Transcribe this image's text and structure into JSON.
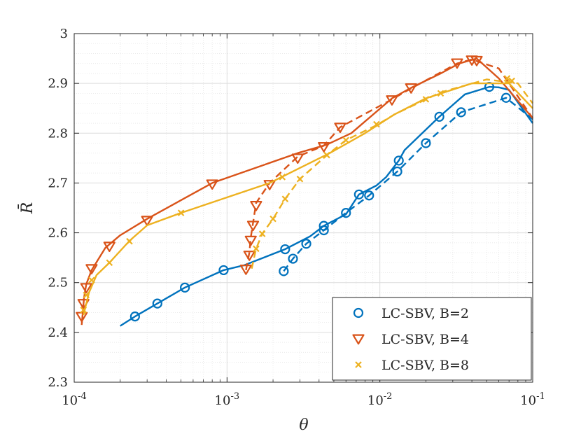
{
  "chart_data": {
    "type": "line",
    "title": "",
    "xlabel": "θ",
    "ylabel": "R̄",
    "xscale": "log",
    "xlim": [
      0.0001,
      0.1
    ],
    "ylim": [
      2.3,
      3.0
    ],
    "grid": true,
    "minor_grid": true,
    "legend_position": "bottom-right",
    "x_tick_labels": [
      {
        "base": "10",
        "exp": "-4",
        "value": 0.0001
      },
      {
        "base": "10",
        "exp": "-3",
        "value": 0.001
      },
      {
        "base": "10",
        "exp": "-2",
        "value": 0.01
      },
      {
        "base": "10",
        "exp": "-1",
        "value": 0.1
      }
    ],
    "y_ticks": [
      2.3,
      2.4,
      2.5,
      2.6,
      2.7,
      2.8,
      2.9,
      3.0
    ],
    "y_tick_labels": [
      "2.3",
      "2.4",
      "2.5",
      "2.6",
      "2.7",
      "2.8",
      "2.9",
      "3"
    ],
    "series": [
      {
        "name": "LC-SBV, B=2",
        "color": "#0072BD",
        "marker": "circle",
        "solid": [
          [
            0.0002,
            2.413
          ],
          [
            0.00025,
            2.432
          ],
          [
            0.00035,
            2.458
          ],
          [
            0.00053,
            2.49
          ],
          [
            0.00095,
            2.525
          ],
          [
            0.0013,
            2.535
          ],
          [
            0.0024,
            2.567
          ],
          [
            0.0035,
            2.593
          ],
          [
            0.0043,
            2.614
          ],
          [
            0.006,
            2.637
          ],
          [
            0.0073,
            2.677
          ],
          [
            0.0095,
            2.695
          ],
          [
            0.011,
            2.712
          ],
          [
            0.0133,
            2.745
          ],
          [
            0.0145,
            2.766
          ],
          [
            0.0245,
            2.833
          ],
          [
            0.036,
            2.878
          ],
          [
            0.052,
            2.893
          ],
          [
            0.06,
            2.892
          ],
          [
            0.07,
            2.887
          ],
          [
            0.1,
            2.82
          ]
        ],
        "dashed": [
          [
            0.00235,
            2.523
          ],
          [
            0.0027,
            2.548
          ],
          [
            0.0033,
            2.578
          ],
          [
            0.0043,
            2.605
          ],
          [
            0.006,
            2.64
          ],
          [
            0.0085,
            2.675
          ],
          [
            0.013,
            2.723
          ],
          [
            0.02,
            2.78
          ],
          [
            0.034,
            2.842
          ],
          [
            0.067,
            2.871
          ],
          [
            0.1,
            2.828
          ]
        ],
        "markers_solid": [
          [
            0.00025,
            2.432
          ],
          [
            0.00035,
            2.458
          ],
          [
            0.00053,
            2.49
          ],
          [
            0.00095,
            2.525
          ],
          [
            0.0024,
            2.567
          ],
          [
            0.0043,
            2.614
          ],
          [
            0.0073,
            2.677
          ],
          [
            0.0133,
            2.745
          ],
          [
            0.0245,
            2.833
          ],
          [
            0.052,
            2.893
          ]
        ],
        "markers_dashed": [
          [
            0.00235,
            2.523
          ],
          [
            0.0027,
            2.548
          ],
          [
            0.0033,
            2.578
          ],
          [
            0.0043,
            2.605
          ],
          [
            0.006,
            2.64
          ],
          [
            0.0085,
            2.675
          ],
          [
            0.013,
            2.723
          ],
          [
            0.02,
            2.78
          ],
          [
            0.034,
            2.842
          ],
          [
            0.067,
            2.871
          ]
        ]
      },
      {
        "name": "LC-SBV, B=4",
        "color": "#D95319",
        "marker": "triangle-down",
        "solid": [
          [
            0.000112,
            2.415
          ],
          [
            0.000116,
            2.47
          ],
          [
            0.00012,
            2.497
          ],
          [
            0.00013,
            2.525
          ],
          [
            0.00016,
            2.57
          ],
          [
            0.0002,
            2.595
          ],
          [
            0.0003,
            2.628
          ],
          [
            0.0008,
            2.7
          ],
          [
            0.0029,
            2.76
          ],
          [
            0.0045,
            2.777
          ],
          [
            0.0065,
            2.8
          ],
          [
            0.012,
            2.87
          ],
          [
            0.016,
            2.891
          ],
          [
            0.025,
            2.92
          ],
          [
            0.033,
            2.94
          ],
          [
            0.043,
            2.95
          ],
          [
            0.06,
            2.91
          ],
          [
            0.1,
            2.83
          ]
        ],
        "dashed": [
          [
            0.00133,
            2.525
          ],
          [
            0.0014,
            2.56
          ],
          [
            0.00143,
            2.59
          ],
          [
            0.00148,
            2.62
          ],
          [
            0.00155,
            2.66
          ],
          [
            0.0019,
            2.7
          ],
          [
            0.0029,
            2.753
          ],
          [
            0.0043,
            2.775
          ],
          [
            0.0055,
            2.812
          ],
          [
            0.012,
            2.868
          ],
          [
            0.016,
            2.89
          ],
          [
            0.032,
            2.94
          ],
          [
            0.04,
            2.948
          ],
          [
            0.06,
            2.93
          ],
          [
            0.1,
            2.83
          ]
        ],
        "markers_solid": [
          [
            0.000112,
            2.432
          ],
          [
            0.000115,
            2.458
          ],
          [
            0.00012,
            2.49
          ],
          [
            0.00013,
            2.528
          ],
          [
            0.00017,
            2.573
          ],
          [
            0.0003,
            2.625
          ],
          [
            0.0008,
            2.698
          ],
          [
            0.0029,
            2.75
          ],
          [
            0.0043,
            2.773
          ],
          [
            0.012,
            2.867
          ],
          [
            0.016,
            2.891
          ],
          [
            0.032,
            2.941
          ],
          [
            0.043,
            2.946
          ]
        ],
        "markers_dashed": [
          [
            0.00133,
            2.527
          ],
          [
            0.0014,
            2.555
          ],
          [
            0.00143,
            2.585
          ],
          [
            0.00148,
            2.615
          ],
          [
            0.00155,
            2.655
          ],
          [
            0.0019,
            2.697
          ],
          [
            0.0055,
            2.812
          ],
          [
            0.04,
            2.947
          ]
        ]
      },
      {
        "name": "LC-SBV, B=8",
        "color": "#EDB120",
        "marker": "x",
        "solid": [
          [
            0.000115,
            2.435
          ],
          [
            0.000125,
            2.48
          ],
          [
            0.00014,
            2.515
          ],
          [
            0.00017,
            2.54
          ],
          [
            0.00023,
            2.584
          ],
          [
            0.0003,
            2.615
          ],
          [
            0.0005,
            2.64
          ],
          [
            0.0019,
            2.7
          ],
          [
            0.0047,
            2.76
          ],
          [
            0.008,
            2.8
          ],
          [
            0.0125,
            2.838
          ],
          [
            0.02,
            2.87
          ],
          [
            0.04,
            2.9
          ],
          [
            0.07,
            2.9
          ],
          [
            0.1,
            2.85
          ]
        ],
        "dashed": [
          [
            0.00145,
            2.528
          ],
          [
            0.00155,
            2.568
          ],
          [
            0.0017,
            2.598
          ],
          [
            0.002,
            2.628
          ],
          [
            0.0024,
            2.668
          ],
          [
            0.003,
            2.708
          ],
          [
            0.0045,
            2.756
          ],
          [
            0.006,
            2.786
          ],
          [
            0.0095,
            2.816
          ],
          [
            0.0125,
            2.838
          ],
          [
            0.025,
            2.882
          ],
          [
            0.05,
            2.908
          ],
          [
            0.08,
            2.9
          ],
          [
            0.1,
            2.86
          ]
        ],
        "markers_solid": [
          [
            0.000115,
            2.445
          ],
          [
            0.00012,
            2.475
          ],
          [
            0.00013,
            2.505
          ],
          [
            0.00017,
            2.54
          ],
          [
            0.00023,
            2.583
          ],
          [
            0.0005,
            2.64
          ],
          [
            0.0023,
            2.712
          ],
          [
            0.0095,
            2.818
          ],
          [
            0.02,
            2.868
          ],
          [
            0.068,
            2.91
          ]
        ],
        "markers_dashed": [
          [
            0.00155,
            2.568
          ],
          [
            0.0017,
            2.598
          ],
          [
            0.002,
            2.628
          ],
          [
            0.0024,
            2.668
          ],
          [
            0.003,
            2.708
          ],
          [
            0.0045,
            2.756
          ],
          [
            0.006,
            2.786
          ],
          [
            0.025,
            2.88
          ],
          [
            0.073,
            2.905
          ]
        ]
      }
    ]
  }
}
